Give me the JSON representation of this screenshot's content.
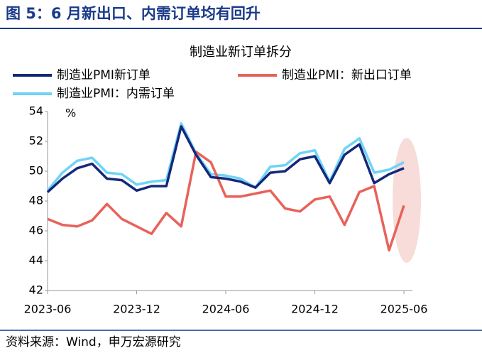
{
  "header": {
    "title": "图 5：6 月新出口、内需订单均有回升"
  },
  "source": "资料来源：Wind，申万宏源研究",
  "chart_data": {
    "type": "line",
    "title": "制造业新订单拆分",
    "y_unit": "%",
    "categories": [
      "2023-06",
      null,
      null,
      null,
      null,
      null,
      "2023-12",
      null,
      null,
      null,
      null,
      null,
      "2024-06",
      null,
      null,
      null,
      null,
      null,
      "2024-12",
      null,
      null,
      null,
      null,
      null,
      "2025-06"
    ],
    "ylim": [
      42,
      54
    ],
    "yticks": [
      42,
      44,
      46,
      48,
      50,
      52,
      54
    ],
    "series": [
      {
        "name": "制造业PMI新订单",
        "color": "#14287a",
        "values": [
          48.6,
          49.5,
          50.2,
          50.5,
          49.5,
          49.4,
          48.7,
          49.0,
          49.0,
          53.0,
          51.1,
          49.6,
          49.5,
          49.3,
          48.9,
          49.9,
          50.0,
          50.8,
          51.0,
          49.2,
          51.1,
          51.8,
          49.2,
          49.8,
          50.2
        ]
      },
      {
        "name": "制造业PMI：新出口订单",
        "color": "#e8625a",
        "values": [
          46.8,
          46.4,
          46.3,
          46.7,
          47.8,
          46.8,
          46.3,
          45.8,
          47.2,
          46.3,
          51.3,
          50.6,
          48.3,
          48.3,
          48.5,
          48.7,
          47.5,
          47.3,
          48.1,
          48.3,
          46.4,
          48.6,
          49.0,
          44.7,
          47.7
        ]
      },
      {
        "name": "制造业PMI：内需订单",
        "color": "#6fd3f7",
        "values": [
          48.7,
          49.9,
          50.7,
          50.9,
          49.9,
          49.8,
          49.1,
          49.3,
          49.4,
          53.2,
          51.2,
          49.8,
          49.7,
          49.5,
          48.9,
          50.3,
          50.4,
          51.2,
          51.4,
          49.3,
          51.5,
          52.2,
          49.9,
          50.1,
          50.6
        ]
      }
    ]
  }
}
